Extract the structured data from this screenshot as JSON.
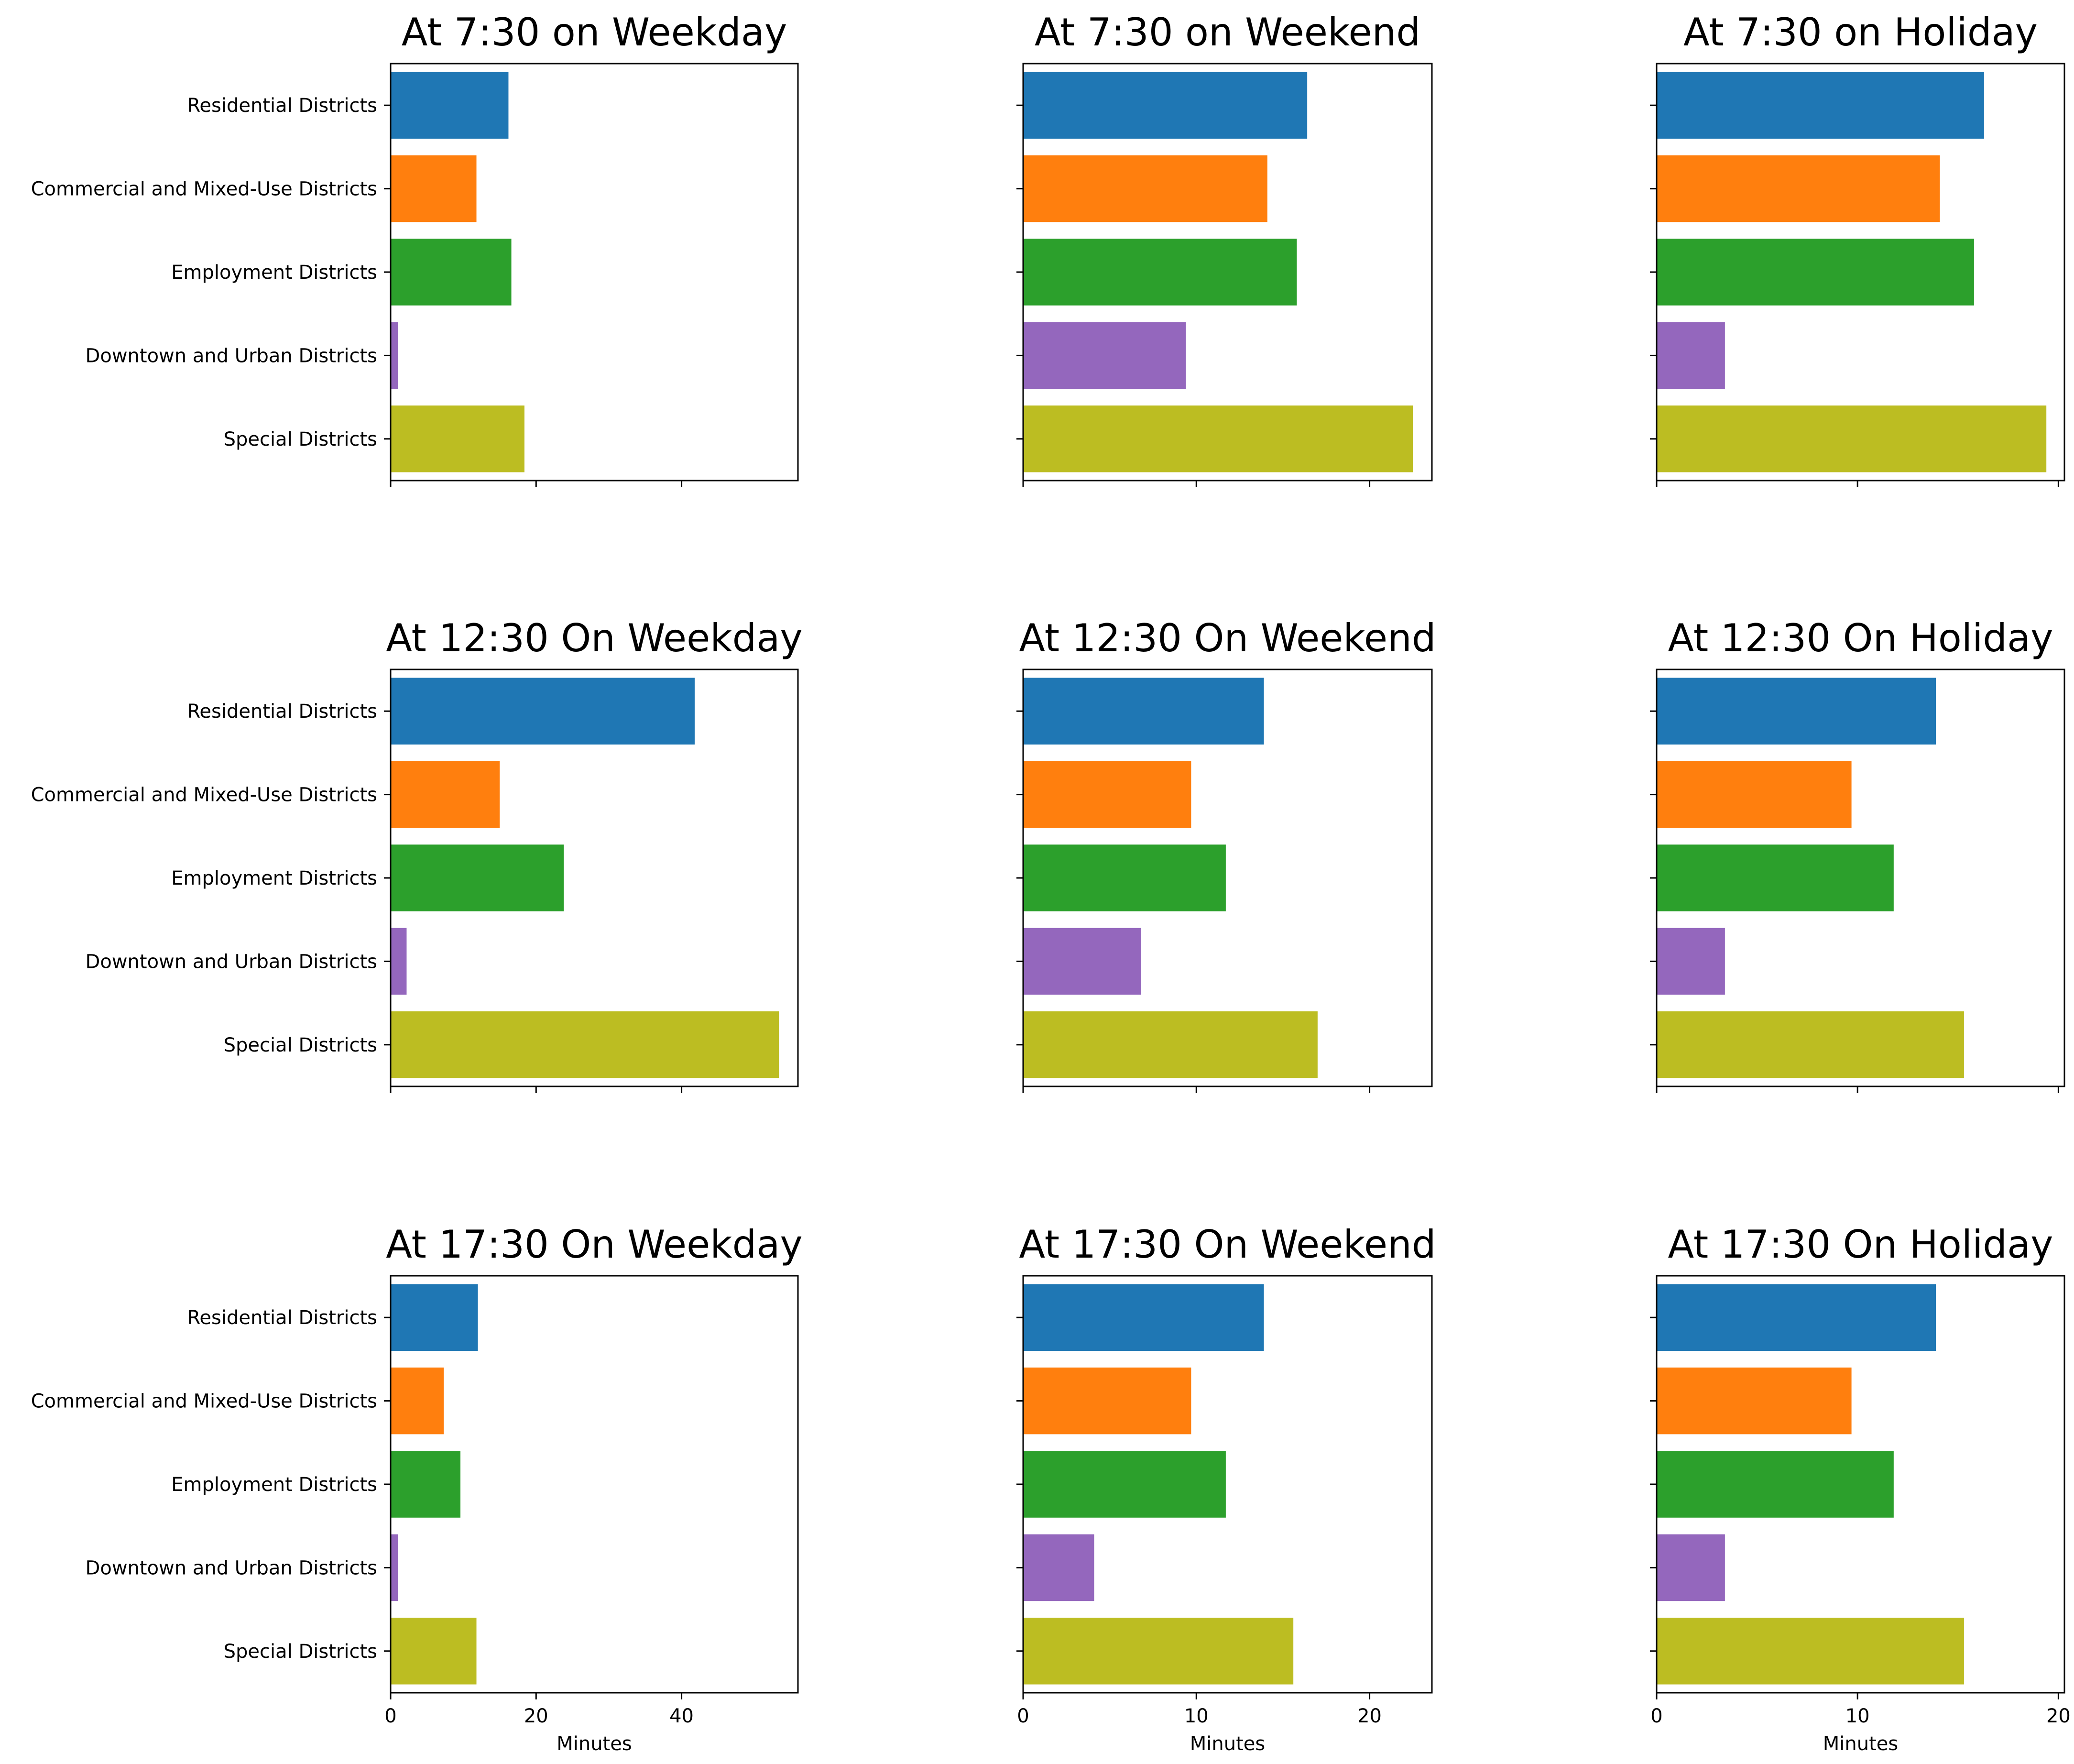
{
  "figure": {
    "colors": [
      "#1f77b4",
      "#ff7f0e",
      "#2ca02c",
      "#9467bd",
      "#bcbd22"
    ]
  },
  "chart_data": [
    {
      "type": "bar",
      "orientation": "horizontal",
      "title": "At 7:30 on Weekday",
      "categories": [
        "Residential Districts",
        "Commercial and Mixed-Use Districts",
        "Employment Districts",
        "Downtown and Urban Districts",
        "Special Districts"
      ],
      "values": [
        16.2,
        11.8,
        16.6,
        1.0,
        18.4
      ],
      "xlim": [
        0,
        56
      ],
      "xticks": [
        0,
        20,
        40
      ],
      "show_xtick_labels": false,
      "xlabel": "",
      "show_category_labels": true
    },
    {
      "type": "bar",
      "orientation": "horizontal",
      "title": "At 7:30 on Weekend",
      "categories": [
        "Residential Districts",
        "Commercial and Mixed-Use Districts",
        "Employment Districts",
        "Downtown and Urban Districts",
        "Special Districts"
      ],
      "values": [
        16.4,
        14.1,
        15.8,
        9.4,
        22.5
      ],
      "xlim": [
        0,
        23.6
      ],
      "xticks": [
        0,
        10,
        20
      ],
      "show_xtick_labels": false,
      "xlabel": "",
      "show_category_labels": false
    },
    {
      "type": "bar",
      "orientation": "horizontal",
      "title": "At 7:30 on Holiday",
      "categories": [
        "Residential Districts",
        "Commercial and Mixed-Use Districts",
        "Employment Districts",
        "Downtown and Urban Districts",
        "Special Districts"
      ],
      "values": [
        16.3,
        14.1,
        15.8,
        3.4,
        19.4
      ],
      "xlim": [
        0,
        20.3
      ],
      "xticks": [
        0,
        10,
        20
      ],
      "show_xtick_labels": false,
      "xlabel": "",
      "show_category_labels": false
    },
    {
      "type": "bar",
      "orientation": "horizontal",
      "title": "At 12:30 On Weekday",
      "categories": [
        "Residential Districts",
        "Commercial and Mixed-Use Districts",
        "Employment Districts",
        "Downtown and Urban Districts",
        "Special Districts"
      ],
      "values": [
        41.8,
        15.0,
        23.8,
        2.2,
        53.4
      ],
      "xlim": [
        0,
        56
      ],
      "xticks": [
        0,
        20,
        40
      ],
      "show_xtick_labels": false,
      "xlabel": "",
      "show_category_labels": true
    },
    {
      "type": "bar",
      "orientation": "horizontal",
      "title": "At 12:30 On Weekend",
      "categories": [
        "Residential Districts",
        "Commercial and Mixed-Use Districts",
        "Employment Districts",
        "Downtown and Urban Districts",
        "Special Districts"
      ],
      "values": [
        13.9,
        9.7,
        11.7,
        6.8,
        17.0
      ],
      "xlim": [
        0,
        23.6
      ],
      "xticks": [
        0,
        10,
        20
      ],
      "show_xtick_labels": false,
      "xlabel": "",
      "show_category_labels": false
    },
    {
      "type": "bar",
      "orientation": "horizontal",
      "title": "At 12:30 On Holiday",
      "categories": [
        "Residential Districts",
        "Commercial and Mixed-Use Districts",
        "Employment Districts",
        "Downtown and Urban Districts",
        "Special Districts"
      ],
      "values": [
        13.9,
        9.7,
        11.8,
        3.4,
        15.3
      ],
      "xlim": [
        0,
        20.3
      ],
      "xticks": [
        0,
        10,
        20
      ],
      "show_xtick_labels": false,
      "xlabel": "",
      "show_category_labels": false
    },
    {
      "type": "bar",
      "orientation": "horizontal",
      "title": "At 17:30 On Weekday",
      "categories": [
        "Residential Districts",
        "Commercial and Mixed-Use Districts",
        "Employment Districts",
        "Downtown and Urban Districts",
        "Special Districts"
      ],
      "values": [
        12.0,
        7.3,
        9.6,
        1.0,
        11.8
      ],
      "xlim": [
        0,
        56
      ],
      "xticks": [
        0,
        20,
        40
      ],
      "show_xtick_labels": true,
      "xlabel": "Minutes",
      "show_category_labels": true
    },
    {
      "type": "bar",
      "orientation": "horizontal",
      "title": "At 17:30 On Weekend",
      "categories": [
        "Residential Districts",
        "Commercial and Mixed-Use Districts",
        "Employment Districts",
        "Downtown and Urban Districts",
        "Special Districts"
      ],
      "values": [
        13.9,
        9.7,
        11.7,
        4.1,
        15.6
      ],
      "xlim": [
        0,
        23.6
      ],
      "xticks": [
        0,
        10,
        20
      ],
      "show_xtick_labels": true,
      "xlabel": "Minutes",
      "show_category_labels": false
    },
    {
      "type": "bar",
      "orientation": "horizontal",
      "title": "At 17:30 On Holiday",
      "categories": [
        "Residential Districts",
        "Commercial and Mixed-Use Districts",
        "Employment Districts",
        "Downtown and Urban Districts",
        "Special Districts"
      ],
      "values": [
        13.9,
        9.7,
        11.8,
        3.4,
        15.3
      ],
      "xlim": [
        0,
        20.3
      ],
      "xticks": [
        0,
        10,
        20
      ],
      "show_xtick_labels": true,
      "xlabel": "Minutes",
      "show_category_labels": false
    }
  ]
}
